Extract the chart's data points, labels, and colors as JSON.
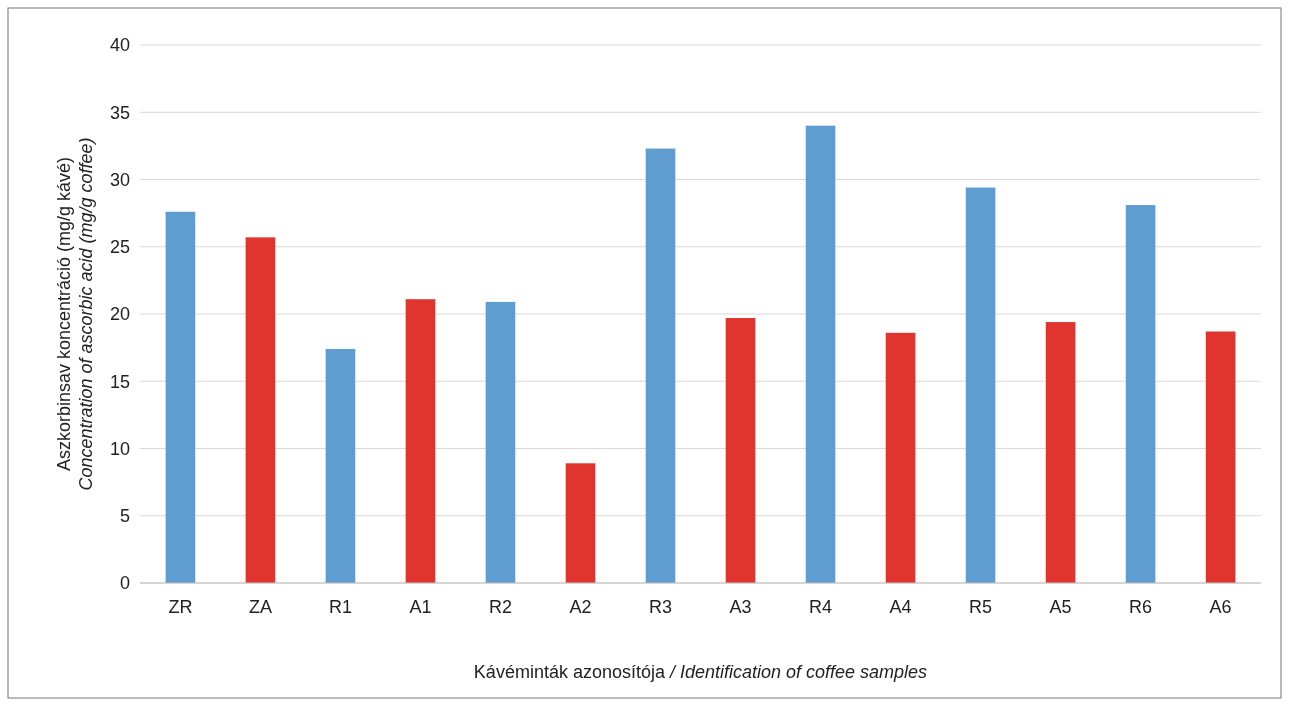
{
  "chart_data": {
    "type": "bar",
    "ylabel": "Aszkorbinsav koncentráció (mg/g kávé)\nConcentration of ascorbic acid (mg/g coffee)",
    "xlabel": "Kávéminták azonosítója / Identification of coffee samples",
    "categories": [
      "ZR",
      "ZA",
      "R1",
      "A1",
      "R2",
      "A2",
      "R3",
      "A3",
      "R4",
      "A4",
      "R5",
      "A5",
      "R6",
      "A6"
    ],
    "values": [
      27.6,
      25.7,
      17.4,
      21.1,
      20.9,
      8.9,
      32.3,
      19.7,
      34.0,
      18.6,
      29.4,
      19.4,
      28.1,
      18.7
    ],
    "colors": [
      "#5f9dd0",
      "#e0342f",
      "#5f9dd0",
      "#e0342f",
      "#5f9dd0",
      "#e0342f",
      "#5f9dd0",
      "#e0342f",
      "#5f9dd0",
      "#e0342f",
      "#5f9dd0",
      "#e0342f",
      "#5f9dd0",
      "#e0342f"
    ],
    "ylim": [
      0,
      40
    ],
    "yticks": [
      0,
      5,
      10,
      15,
      20,
      25,
      30,
      35,
      40
    ],
    "grid": "y"
  }
}
